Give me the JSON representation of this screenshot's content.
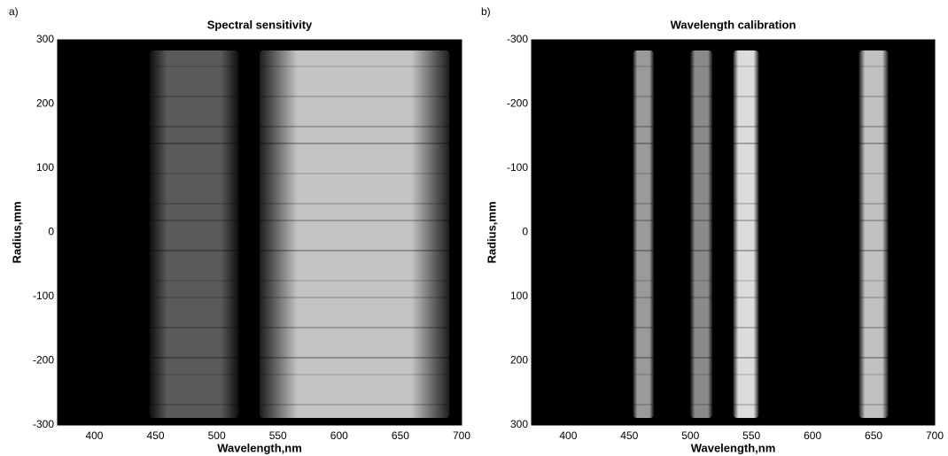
{
  "chart_data": [
    {
      "type": "image",
      "panel_label": "a)",
      "title": "Spectral sensitivity",
      "xlabel": "Wavelength,nm",
      "ylabel": "Radius,mm",
      "xlim": [
        370,
        700
      ],
      "ylim": [
        -300,
        300
      ],
      "xticks": [
        400,
        450,
        500,
        550,
        600,
        650,
        700
      ],
      "yticks": [
        -300,
        -200,
        -100,
        0,
        100,
        200,
        300
      ],
      "bands": [
        {
          "range": [
            445,
            518
          ],
          "color": "#5a5a5a"
        },
        {
          "range": [
            535,
            690
          ],
          "color": "#c4c4c4"
        }
      ]
    },
    {
      "type": "image",
      "panel_label": "b)",
      "title": "Wavelength calibration",
      "xlabel": "Wavelength,nm",
      "ylabel": "Radius,mm",
      "xlim": [
        370,
        700
      ],
      "ylim": [
        300,
        -300
      ],
      "xticks": [
        400,
        450,
        500,
        550,
        600,
        650,
        700
      ],
      "yticks": [
        -300,
        -200,
        -100,
        0,
        100,
        200,
        300
      ],
      "bands": [
        {
          "range": [
            453,
            470
          ],
          "color": "#9a9a9a"
        },
        {
          "range": [
            500,
            518
          ],
          "color": "#8a8a8a"
        },
        {
          "range": [
            535,
            556
          ],
          "color": "#dcdcdc"
        },
        {
          "range": [
            638,
            662
          ],
          "color": "#c0c0c0"
        }
      ]
    }
  ]
}
